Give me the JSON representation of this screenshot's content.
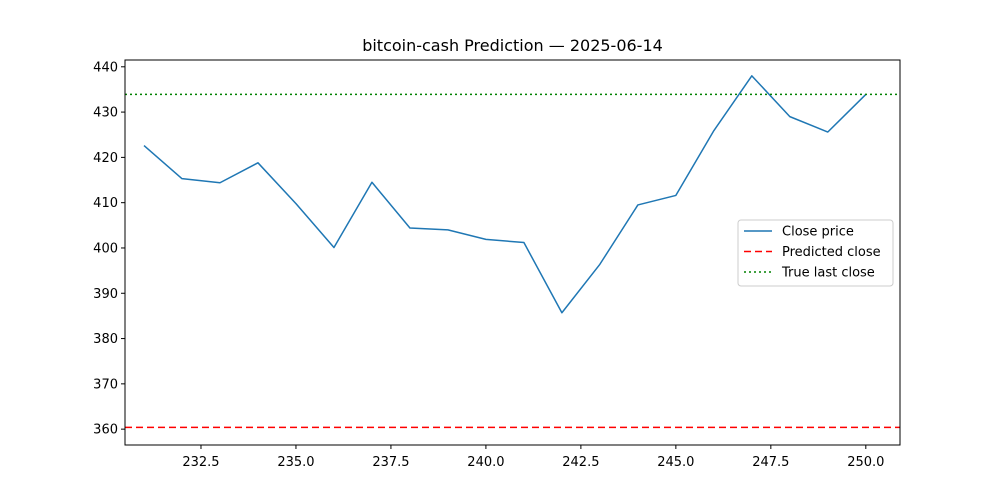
{
  "chart_data": {
    "type": "line",
    "title": "bitcoin-cash Prediction — 2025-06-14",
    "xlabel": "",
    "ylabel": "",
    "xlim": [
      230.5,
      250.9
    ],
    "ylim": [
      356.5,
      441.5
    ],
    "x_ticks": [
      232.5,
      235.0,
      237.5,
      240.0,
      242.5,
      245.0,
      247.5,
      250.0
    ],
    "x_tick_labels": [
      "232.5",
      "235.0",
      "237.5",
      "240.0",
      "242.5",
      "245.0",
      "247.5",
      "250.0"
    ],
    "y_ticks": [
      360,
      370,
      380,
      390,
      400,
      410,
      420,
      430,
      440
    ],
    "y_tick_labels": [
      "360",
      "370",
      "380",
      "390",
      "400",
      "410",
      "420",
      "430",
      "440"
    ],
    "grid": false,
    "legend_position": "center-right",
    "series": [
      {
        "name": "Close price",
        "style": "solid",
        "color": "#1f77b4",
        "x": [
          231,
          232,
          233,
          234,
          235,
          236,
          237,
          238,
          239,
          240,
          241,
          242,
          243,
          244,
          245,
          246,
          247,
          248,
          249,
          250
        ],
        "y": [
          422.6,
          415.3,
          414.4,
          418.8,
          409.8,
          400.1,
          414.5,
          404.4,
          404.0,
          401.9,
          401.2,
          385.7,
          396.4,
          409.5,
          411.6,
          425.9,
          438.0,
          429.0,
          425.6,
          433.9
        ]
      },
      {
        "name": "Predicted close",
        "style": "dashed",
        "color": "#ff0000",
        "type": "hline",
        "y": 360.4
      },
      {
        "name": "True last close",
        "style": "dotted",
        "color": "#008000",
        "type": "hline",
        "y": 433.9
      }
    ]
  }
}
